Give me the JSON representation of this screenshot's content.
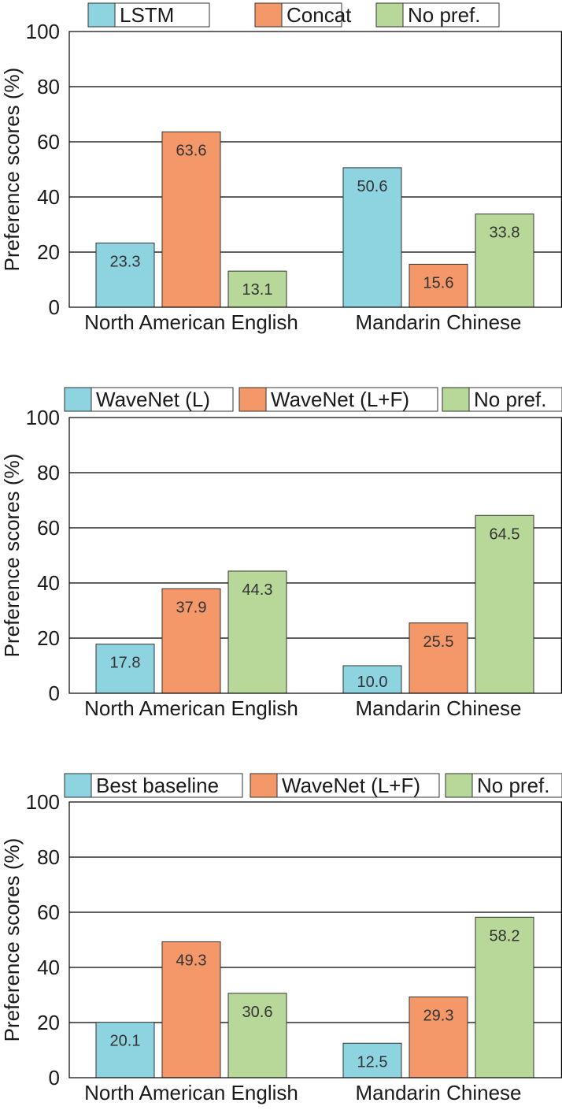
{
  "chart_data": [
    {
      "type": "bar",
      "categories": [
        "North American English",
        "Mandarin Chinese"
      ],
      "series": [
        {
          "name": "LSTM",
          "color": "#8dd3e0",
          "values": [
            23.3,
            50.6
          ]
        },
        {
          "name": "Concat",
          "color": "#f4986a",
          "values": [
            63.6,
            15.6
          ]
        },
        {
          "name": "No pref.",
          "color": "#b7d898",
          "values": [
            13.1,
            33.8
          ]
        }
      ],
      "value_labels": [
        [
          "23.3",
          "50.6"
        ],
        [
          "63.6",
          "15.6"
        ],
        [
          "13.1",
          "33.8"
        ]
      ],
      "ylabel": "Preference scores (%)",
      "ylim": [
        0,
        100
      ],
      "yticks": [
        "0",
        "20",
        "40",
        "60",
        "80",
        "100"
      ],
      "grid": true,
      "legend_position": "top"
    },
    {
      "type": "bar",
      "categories": [
        "North American English",
        "Mandarin Chinese"
      ],
      "series": [
        {
          "name": "WaveNet (L)",
          "color": "#8dd3e0",
          "values": [
            17.8,
            10.0
          ]
        },
        {
          "name": "WaveNet (L+F)",
          "color": "#f4986a",
          "values": [
            37.9,
            25.5
          ]
        },
        {
          "name": "No pref.",
          "color": "#b7d898",
          "values": [
            44.3,
            64.5
          ]
        }
      ],
      "value_labels": [
        [
          "17.8",
          "10.0"
        ],
        [
          "37.9",
          "25.5"
        ],
        [
          "44.3",
          "64.5"
        ]
      ],
      "ylabel": "Preference scores (%)",
      "ylim": [
        0,
        100
      ],
      "yticks": [
        "0",
        "20",
        "40",
        "60",
        "80",
        "100"
      ],
      "grid": true,
      "legend_position": "top"
    },
    {
      "type": "bar",
      "categories": [
        "North American English",
        "Mandarin Chinese"
      ],
      "series": [
        {
          "name": "Best baseline",
          "color": "#8dd3e0",
          "values": [
            20.1,
            12.5
          ]
        },
        {
          "name": "WaveNet (L+F)",
          "color": "#f4986a",
          "values": [
            49.3,
            29.3
          ]
        },
        {
          "name": "No pref.",
          "color": "#b7d898",
          "values": [
            30.6,
            58.2
          ]
        }
      ],
      "value_labels": [
        [
          "20.1",
          "12.5"
        ],
        [
          "49.3",
          "29.3"
        ],
        [
          "30.6",
          "58.2"
        ]
      ],
      "ylabel": "Preference scores (%)",
      "ylim": [
        0,
        100
      ],
      "yticks": [
        "0",
        "20",
        "40",
        "60",
        "80",
        "100"
      ],
      "grid": true,
      "legend_position": "top"
    }
  ]
}
